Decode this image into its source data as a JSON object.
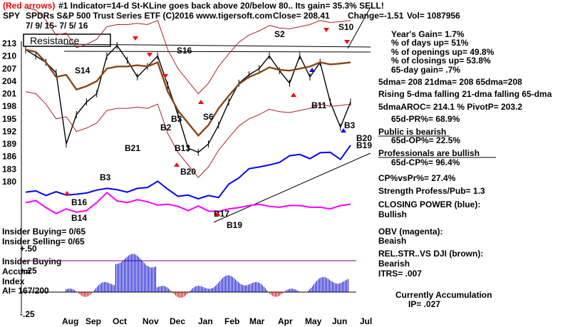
{
  "header": {
    "line1_red": "(Red arrows)",
    "line1": "#1 Indicator=14-d St-KLine goes back above 20/below 80.. Its gain= 35.3% SELL!",
    "ticker": "SPY",
    "desc": "SPDRs S&P 500 Trust Series ETF  (C)2016 www.tigersoft.com",
    "close": "Close=   208.41",
    "change": "Change=-1.51",
    "vol": "Vol= 1087956",
    "daterange": "7/ 9/ 15-  7/ 5/ 16"
  },
  "resistance_label": "Resistance",
  "stats": [
    {
      "text": "Year's Gain= 1.7%",
      "color": "#000000"
    },
    {
      "text": "% of days up= 51%",
      "color": "#000000"
    },
    {
      "text": "% of openings up= 49.8%",
      "color": "#000000"
    },
    {
      "text": "% of closings up= 53.8%",
      "color": "#000000"
    },
    {
      "text": "65-day gain= .7%",
      "color": "#000000"
    },
    {
      "text": "5dma= 208 21dma= 208 65dma=208",
      "color": "#000000"
    },
    {
      "text": "Rising 5-dma  falling 21-dma  falling 65-dma",
      "color": "#000000"
    },
    {
      "text": "5dmaAROC= 214.1 %  PivotP= 203.2",
      "color": "#000000"
    },
    {
      "text": "65d-PR%= 68.9%",
      "color": "#000000"
    },
    {
      "text": "Public is bearish",
      "color": "#000000"
    },
    {
      "text": "65d-OP%= 22.5%",
      "color": "#000000"
    },
    {
      "text": "Professionals are bullish",
      "color": "#000000"
    },
    {
      "text": "65d-CP%= 96.4%",
      "color": "#000000"
    },
    {
      "text": "CP%vsPr%=  27.4%",
      "color": "#000000"
    },
    {
      "text": "Strength Profess/Pub= 1.3",
      "color": "#000000"
    },
    {
      "text": "CLOSING POWER (blue):",
      "color": "#000000"
    },
    {
      "text": "Bullish",
      "color": "#000000"
    },
    {
      "text": "OBV (magenta):",
      "color": "#000000"
    },
    {
      "text": "Beaish",
      "color": "#000000"
    },
    {
      "text": "REL.STR..VS DJI (brown):",
      "color": "#000000"
    },
    {
      "text": "Bearish",
      "color": "#000000"
    },
    {
      "text": "ITRS= .007",
      "color": "#000000"
    },
    {
      "text": "Currently Accumulation",
      "color": "#000000"
    },
    {
      "text": "IP=  .027",
      "color": "#000000"
    }
  ],
  "insider": {
    "buying": "Insider Buying= 0/65",
    "selling": "Insider Selling= 0/65",
    "label": "Insider Buying"
  },
  "accum": {
    "title1": "Accum",
    "title2": "Index",
    "ai": "AI= 167/200",
    "levels": [
      "+.50",
      "+.25",
      "-.25"
    ]
  },
  "chart_data": {
    "type": "line",
    "y_ticks": [
      213,
      210,
      207,
      204,
      201,
      198,
      195,
      192,
      189,
      186,
      183,
      180
    ],
    "ylim": [
      178,
      215
    ],
    "x_ticks": [
      "Aug",
      "Sep",
      "Oct",
      "Nov",
      "Dec",
      "Jan",
      "Feb",
      "Mar",
      "Apr",
      "May",
      "Jun",
      "Jul"
    ],
    "series": [
      {
        "name": "price",
        "color": "#000000",
        "values": [
          211.5,
          210,
          208.5,
          206,
          189,
          196,
          199,
          201,
          210,
          212.5,
          209,
          205,
          207.5,
          210,
          203,
          196,
          188,
          187,
          189,
          193.5,
          199,
          203.5,
          205.5,
          207,
          210,
          206.5,
          203.5,
          210,
          205,
          208.5,
          199,
          193,
          199
        ]
      },
      {
        "name": "CLOSING POWER (blue)",
        "color": "#0000ff",
        "values": [
          177.5,
          177.8,
          176.7,
          177.6,
          176.8,
          177,
          177.3,
          178,
          178.4,
          178.1,
          177.5,
          178.4,
          178.6,
          180.1,
          178.2,
          176.5,
          176.8,
          175.9,
          176.7,
          176.2,
          179.4,
          180.9,
          183.1,
          183.5,
          184,
          184.6,
          186.2,
          186.5,
          185.5,
          186.9,
          187,
          185.3,
          188.7
        ]
      },
      {
        "name": "OBV (magenta)",
        "color": "#ff00ff",
        "values": [
          175,
          175.5,
          173.8,
          172.4,
          173.5,
          172.7,
          173.1,
          175,
          177.4,
          175.4,
          175,
          175.7,
          175.2,
          174.4,
          174.6,
          174.1,
          173.1,
          174.2,
          173,
          172.9,
          173.5,
          173.8,
          174.3,
          174.6,
          174.1,
          173.9,
          174.3,
          174.3,
          173.9,
          173.9,
          173.5,
          174.3,
          174.6
        ]
      },
      {
        "name": "REL.STR..VS DJI (brown)",
        "color": "#8b4513",
        "values": [
          211.5,
          211,
          208.5,
          205,
          205.5,
          202,
          202.8,
          204,
          207,
          207.5,
          207.5,
          207.8,
          207.5,
          208.5,
          201.5,
          197,
          194,
          191,
          193.5,
          197.5,
          200.5,
          203.3,
          205,
          206,
          207.3,
          206.7,
          206.5,
          207,
          207.5,
          208.5,
          208,
          208.2,
          208.5
        ]
      }
    ],
    "signals": [
      "S14",
      "B16",
      "B14",
      "B3",
      "B21",
      "S16",
      "B2",
      "B3",
      "B13",
      "B20",
      "S6",
      "B17",
      "B19",
      "S2",
      "B11",
      "S10",
      "B3",
      "B20",
      "B19"
    ]
  }
}
